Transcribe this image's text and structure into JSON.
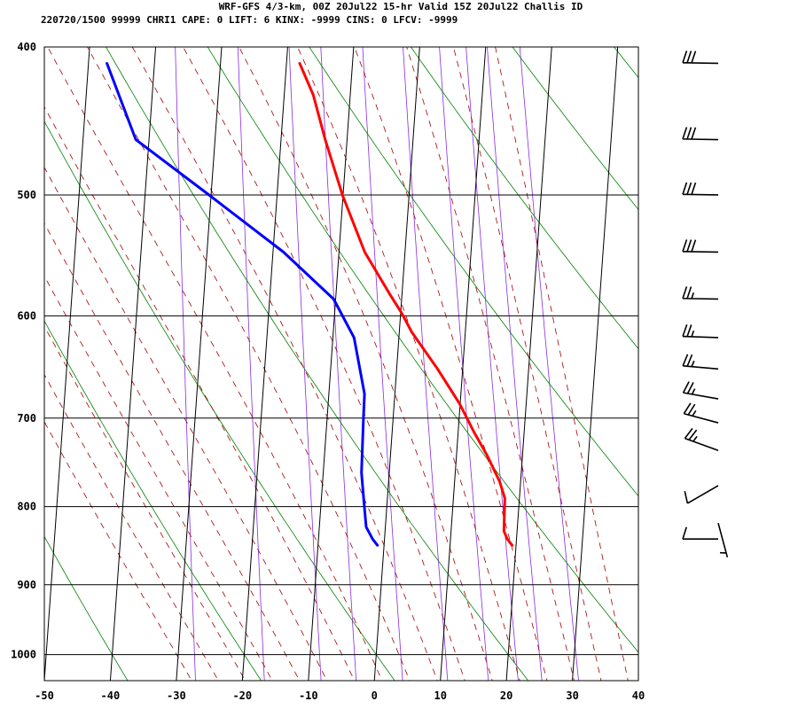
{
  "header": {
    "line1": "WRF-GFS 4/3-km, 00Z 20Jul22 15-hr Valid 15Z 20Jul22 Challis ID",
    "line2": "220720/1500 99999  CHRI1   CAPE:     0 LIFT:     6 KINX: -9999 CINS:     0 LFCV: -9999"
  },
  "colors": {
    "temperature": "#ff0000",
    "dewpoint": "#0000ff",
    "isotherm": "#000000",
    "isobar": "#000000",
    "dry_adiabat": "#008000",
    "moist_adiabat": "#a00000",
    "mixing_ratio": "#8a2be2",
    "wind_barb": "#000000"
  },
  "chart_data": {
    "type": "skew-t",
    "xlim": [
      -50,
      40
    ],
    "ylim": [
      1040,
      400
    ],
    "y_scale": "log-pressure",
    "x_ticks": [
      -50,
      -40,
      -30,
      -20,
      -10,
      0,
      10,
      20,
      30,
      40
    ],
    "x_tick_labels": [
      "-50",
      "-40",
      "-30",
      "-20",
      "-10",
      "0",
      "10",
      "20",
      "30",
      "40"
    ],
    "y_ticks": [
      400,
      500,
      600,
      700,
      800,
      900,
      1000
    ],
    "y_tick_labels": [
      "400",
      "500",
      "600",
      "700",
      "800",
      "900",
      "1000"
    ],
    "series": [
      {
        "color_key": "temperature",
        "points": [
          {
            "p": 848,
            "t": 19.4
          },
          {
            "p": 840,
            "t": 18.6
          },
          {
            "p": 830,
            "t": 18.0
          },
          {
            "p": 790,
            "t": 17.8
          },
          {
            "p": 770,
            "t": 16.8
          },
          {
            "p": 740,
            "t": 14.6
          },
          {
            "p": 715,
            "t": 12.4
          },
          {
            "p": 685,
            "t": 9.9
          },
          {
            "p": 650,
            "t": 6.2
          },
          {
            "p": 615,
            "t": 1.9
          },
          {
            "p": 597,
            "t": 0.1
          },
          {
            "p": 582,
            "t": -1.7
          },
          {
            "p": 545,
            "t": -6.1
          },
          {
            "p": 500,
            "t": -10.1
          },
          {
            "p": 460,
            "t": -13.3
          },
          {
            "p": 430,
            "t": -15.6
          },
          {
            "p": 410,
            "t": -18.0
          }
        ]
      },
      {
        "color_key": "dewpoint",
        "points": [
          {
            "p": 848,
            "t": -1.0
          },
          {
            "p": 840,
            "t": -1.8
          },
          {
            "p": 825,
            "t": -2.9
          },
          {
            "p": 795,
            "t": -3.5
          },
          {
            "p": 760,
            "t": -4.2
          },
          {
            "p": 700,
            "t": -4.5
          },
          {
            "p": 675,
            "t": -4.6
          },
          {
            "p": 620,
            "t": -6.8
          },
          {
            "p": 585,
            "t": -10.3
          },
          {
            "p": 545,
            "t": -18.4
          },
          {
            "p": 500,
            "t": -30.3
          },
          {
            "p": 460,
            "t": -42.0
          },
          {
            "p": 410,
            "t": -47.2
          }
        ]
      }
    ],
    "wind_barbs": [
      {
        "p": 410,
        "dir": 271,
        "speed": 30
      },
      {
        "p": 460,
        "dir": 271,
        "speed": 30
      },
      {
        "p": 500,
        "dir": 271,
        "speed": 30
      },
      {
        "p": 545,
        "dir": 271,
        "speed": 30
      },
      {
        "p": 585,
        "dir": 271,
        "speed": 25
      },
      {
        "p": 620,
        "dir": 272,
        "speed": 25
      },
      {
        "p": 650,
        "dir": 275,
        "speed": 25
      },
      {
        "p": 680,
        "dir": 280,
        "speed": 25
      },
      {
        "p": 705,
        "dir": 285,
        "speed": 25
      },
      {
        "p": 735,
        "dir": 290,
        "speed": 25
      },
      {
        "p": 775,
        "dir": 240,
        "speed": 10
      },
      {
        "p": 820,
        "dir": 165,
        "speed": 5
      },
      {
        "p": 840,
        "dir": 270,
        "speed": 10
      }
    ]
  }
}
